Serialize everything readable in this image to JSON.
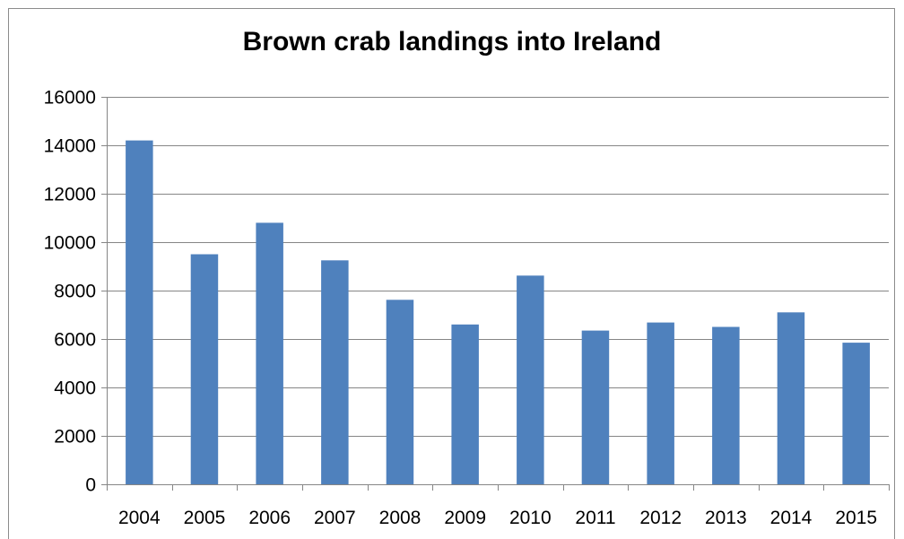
{
  "chart_data": {
    "type": "bar",
    "title": "Brown crab landings into Ireland",
    "xlabel": "",
    "ylabel": "",
    "categories": [
      "2004",
      "2005",
      "2006",
      "2007",
      "2008",
      "2009",
      "2010",
      "2011",
      "2012",
      "2013",
      "2014",
      "2015"
    ],
    "values": [
      14200,
      9500,
      10800,
      9250,
      7620,
      6600,
      8620,
      6350,
      6680,
      6500,
      7100,
      5850
    ],
    "ylim": [
      0,
      16000
    ],
    "yticks": [
      0,
      2000,
      4000,
      6000,
      8000,
      10000,
      12000,
      14000,
      16000
    ],
    "grid": true,
    "legend": "none",
    "colors": {
      "bar": "#4f81bd",
      "grid": "#868686",
      "axis": "#868686"
    }
  }
}
